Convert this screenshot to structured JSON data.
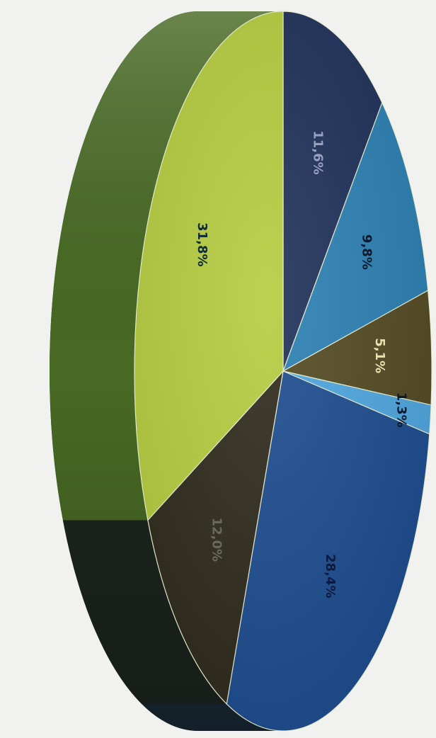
{
  "chart_data": {
    "type": "pie",
    "categories": [
      "",
      "",
      "",
      "",
      "",
      "",
      ""
    ],
    "values": [
      11.6,
      9.8,
      5.1,
      1.3,
      28.4,
      12.0,
      31.8
    ],
    "labels": [
      "11,6%",
      "9,8%",
      "5,1%",
      "1,3%",
      "28,4%",
      "12,0%",
      "31,8%"
    ],
    "colors": [
      "#1e2f58",
      "#2a7fb2",
      "#534a22",
      "#4ea6df",
      "#1c4c8f",
      "#2e2a1c",
      "#b5cc3e"
    ],
    "side_colors": [
      "#1a2a3c",
      "#1f3540",
      "#2a3324",
      "#2d3d34",
      "#1b2b36",
      "#1e2620",
      "#486a24"
    ],
    "label_colors": [
      "#9aa0c0",
      "#0d1a2e",
      "#e8e2b0",
      "#0d1a2e",
      "#0d1a3e",
      "#6a6a58",
      "#0e2a3a"
    ],
    "rendering": "3D rotated pie",
    "legend": "none",
    "title": ""
  }
}
